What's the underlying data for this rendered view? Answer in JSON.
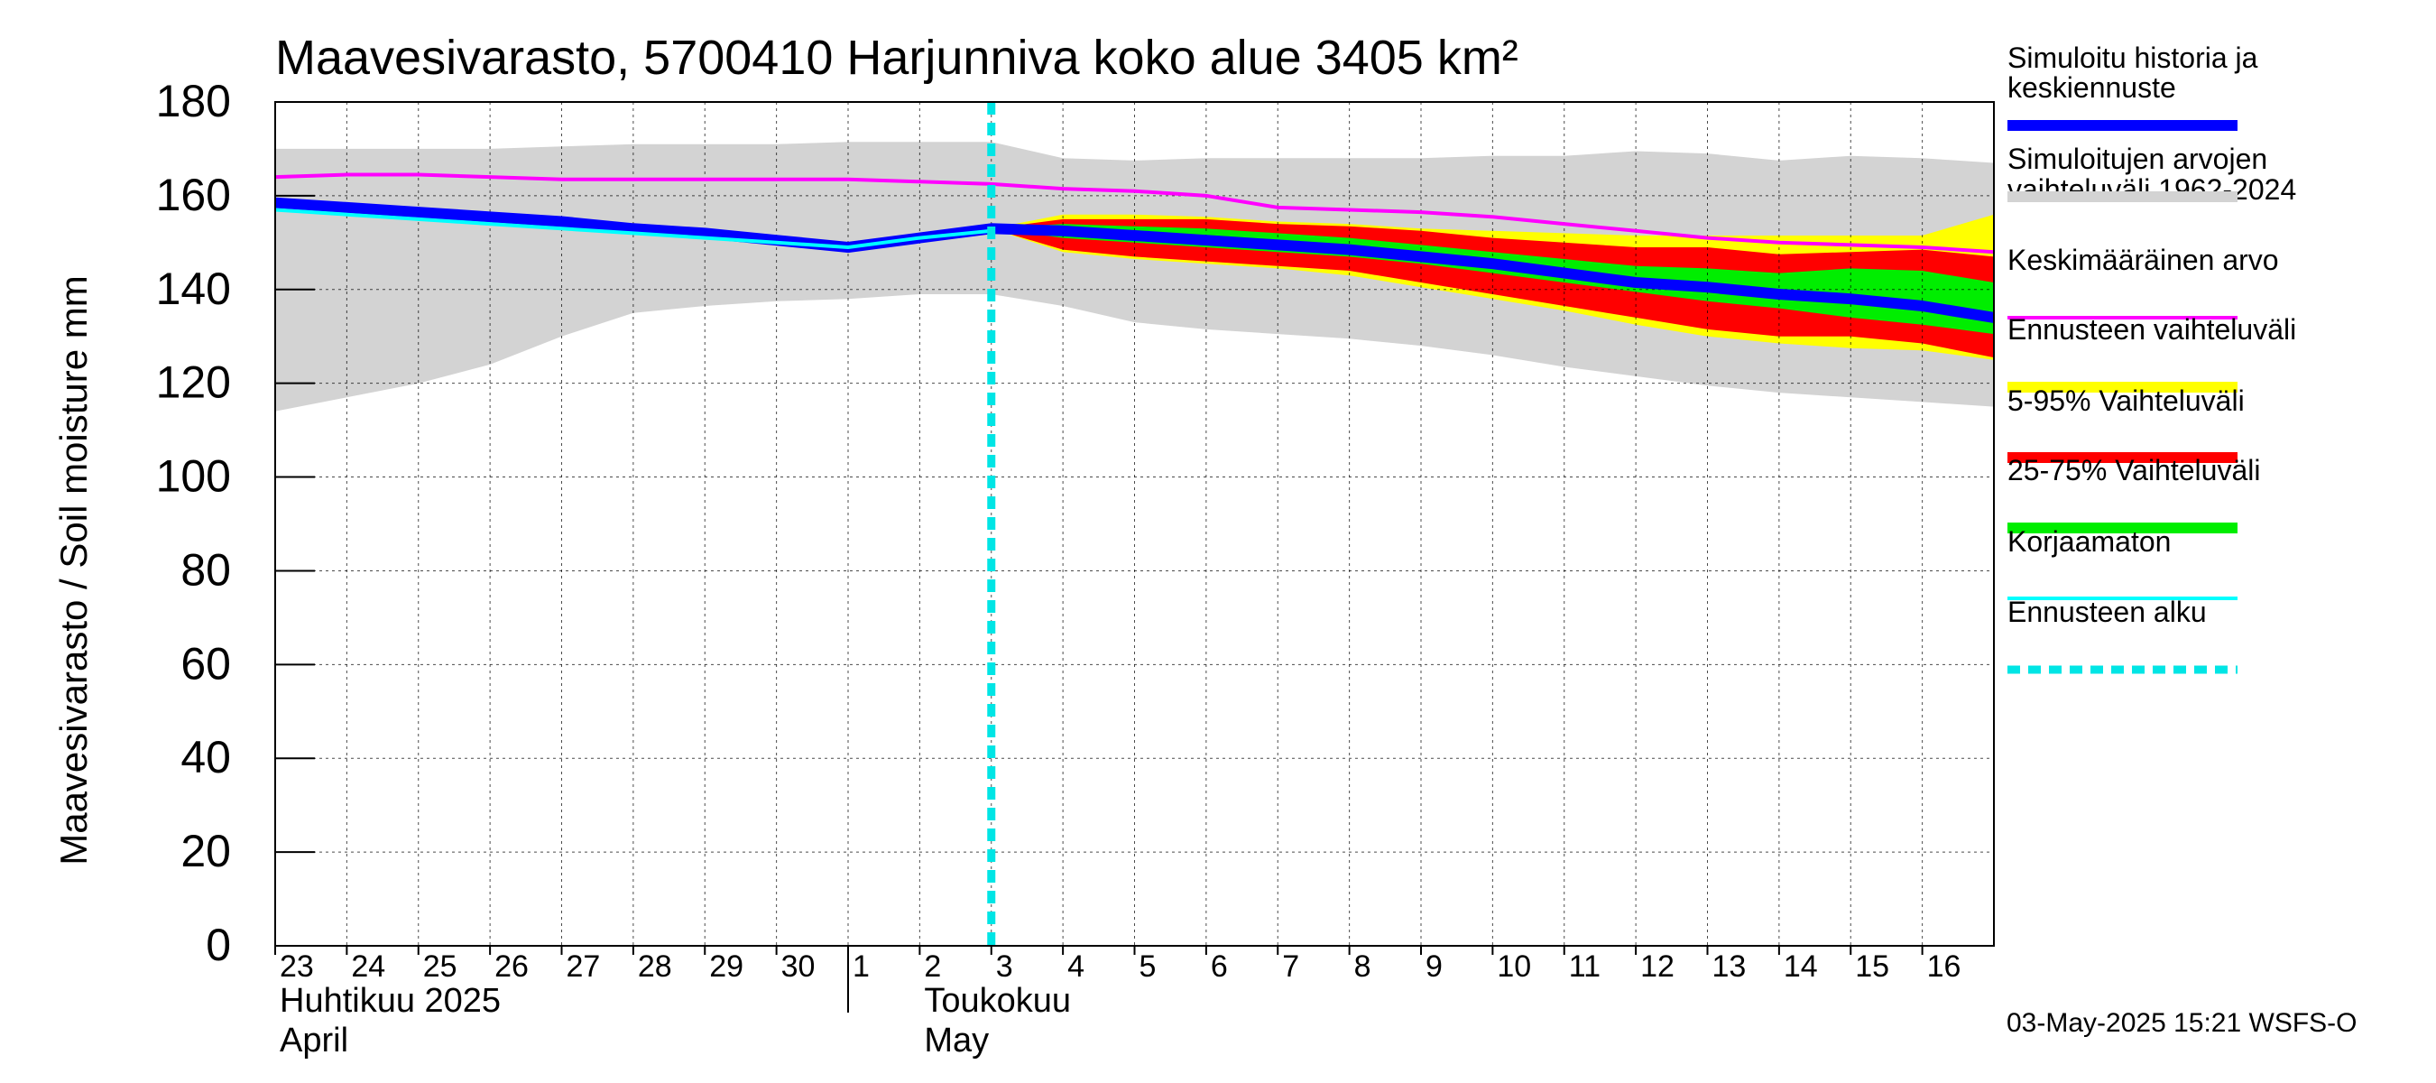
{
  "chart_data": {
    "type": "area",
    "title": "Maavesivarasto, 5700410 Harjunniva koko alue 3405 km²",
    "ylabel": "Maavesivarasto / Soil moisture   mm",
    "ylim": [
      0,
      180
    ],
    "yticks": [
      0,
      20,
      40,
      60,
      80,
      100,
      120,
      140,
      160,
      180
    ],
    "xlim": [
      0,
      24
    ],
    "day_labels": [
      "23",
      "24",
      "25",
      "26",
      "27",
      "28",
      "29",
      "30",
      "1",
      "2",
      "3",
      "4",
      "5",
      "6",
      "7",
      "8",
      "9",
      "10",
      "11",
      "12",
      "13",
      "14",
      "15",
      "16"
    ],
    "month_labels": [
      {
        "day_index": 0,
        "line1": "Huhtikuu  2025",
        "line2": "April"
      },
      {
        "day_index": 9,
        "line1": "Toukokuu",
        "line2": "May"
      }
    ],
    "month_boundary_x": 8,
    "forecast_start_x": 10.0,
    "footer": "03-May-2025 15:21 WSFS-O",
    "colors": {
      "sim": "#0000ff",
      "range_hist": "#d3d3d3",
      "mean": "#ff00ff",
      "fc_range": "#ffff00",
      "p5_95": "#ff0000",
      "p25_75": "#00ee00",
      "uncorrected": "#00ffff",
      "fc_start": "#00e5e5"
    },
    "legend": [
      {
        "key": "sim",
        "label": "Simuloitu historia ja keskiennuste",
        "style": "line"
      },
      {
        "key": "range_hist",
        "label": "Simuloitujen arvojen vaihteluväli 1962-2024",
        "style": "line"
      },
      {
        "key": "mean",
        "label": "Keskimääräinen arvo",
        "style": "thin"
      },
      {
        "key": "fc_range",
        "label": "Ennusteen vaihteluväli",
        "style": "line"
      },
      {
        "key": "p5_95",
        "label": "5-95% Vaihteluväli",
        "style": "line"
      },
      {
        "key": "p25_75",
        "label": "25-75% Vaihteluväli",
        "style": "line"
      },
      {
        "key": "uncorrected",
        "label": "Korjaamaton",
        "style": "thin"
      },
      {
        "key": "fc_start",
        "label": "Ennusteen alku",
        "style": "dashed"
      }
    ],
    "series": {
      "hist_range": {
        "name": "Simuloitujen arvojen vaihteluväli 1962-2024",
        "x": [
          0,
          1,
          2,
          3,
          4,
          5,
          6,
          7,
          8,
          9,
          10,
          11,
          12,
          13,
          14,
          15,
          16,
          17,
          18,
          19,
          20,
          21,
          22,
          23,
          24
        ],
        "upper": [
          170,
          170,
          170,
          170,
          170.5,
          171,
          171,
          171,
          171.5,
          171.5,
          171.5,
          168,
          167.5,
          168,
          168,
          168,
          168,
          168.5,
          168.5,
          169.5,
          169,
          167.5,
          168.5,
          168,
          167
        ],
        "lower": [
          114,
          117,
          120,
          124,
          130,
          135,
          136.5,
          137.5,
          138,
          139,
          139,
          136.5,
          133,
          131.5,
          130.5,
          129.5,
          128,
          126,
          123.5,
          121.5,
          119.5,
          118,
          117,
          116,
          115
        ]
      },
      "fc_range": {
        "name": "Ennusteen vaihteluväli",
        "x": [
          10,
          11,
          12,
          13,
          14,
          15,
          16,
          17,
          18,
          19,
          20,
          21,
          22,
          23,
          24
        ],
        "upper": [
          153,
          156,
          156,
          155.5,
          154.5,
          154,
          153,
          152.5,
          152,
          151.5,
          151.5,
          151.5,
          151.5,
          151.5,
          156
        ],
        "lower": [
          153,
          148,
          146.5,
          145.5,
          144.5,
          143,
          140.5,
          138,
          135.5,
          132.5,
          130,
          128.5,
          127.5,
          127,
          125
        ]
      },
      "p5_95": {
        "name": "5-95% Vaihteluväli",
        "x": [
          10,
          11,
          12,
          13,
          14,
          15,
          16,
          17,
          18,
          19,
          20,
          21,
          22,
          23,
          24
        ],
        "upper": [
          153,
          155,
          155,
          155,
          154,
          153.5,
          152.5,
          151,
          150,
          149,
          149,
          147.5,
          148,
          148.5,
          147
        ],
        "lower": [
          153,
          148.5,
          147,
          146,
          145,
          144,
          141.5,
          139,
          136.5,
          134,
          131.5,
          130,
          130,
          128.5,
          125.5
        ]
      },
      "p25_75": {
        "name": "25-75% Vaihteluväli",
        "x": [
          10,
          11,
          12,
          13,
          14,
          15,
          16,
          17,
          18,
          19,
          20,
          21,
          22,
          23,
          24
        ],
        "upper": [
          153,
          154,
          153.5,
          153,
          152,
          151,
          149.5,
          148,
          146.5,
          145,
          144.5,
          143.5,
          144.5,
          144,
          141.5
        ],
        "lower": [
          153,
          151,
          150,
          149,
          148,
          147,
          145.5,
          143.5,
          141.5,
          139.5,
          137.5,
          136,
          134,
          132.5,
          130.5
        ]
      },
      "sim": {
        "name": "Simuloitu historia ja keskiennuste",
        "x": [
          0,
          1,
          2,
          3,
          4,
          5,
          6,
          7,
          8,
          9,
          10,
          11,
          12,
          13,
          14,
          15,
          16,
          17,
          18,
          19,
          20,
          21,
          22,
          23,
          24
        ],
        "y": [
          158.5,
          157.5,
          156.5,
          155.5,
          154.5,
          153,
          152,
          150.5,
          149,
          151,
          153,
          152.5,
          151.5,
          150.5,
          149.5,
          148.5,
          147,
          145.5,
          143.5,
          141.5,
          140.5,
          139,
          138,
          136.5,
          134
        ]
      },
      "uncorrected": {
        "name": "Korjaamaton",
        "x": [
          0,
          1,
          2,
          3,
          4,
          5,
          6,
          7,
          8,
          9,
          10
        ],
        "y": [
          157,
          156,
          155,
          154,
          153,
          152,
          151,
          150,
          149,
          151,
          152.5
        ]
      },
      "mean": {
        "name": "Keskimääräinen arvo",
        "x": [
          0,
          1,
          2,
          3,
          4,
          5,
          6,
          7,
          8,
          9,
          10,
          11,
          12,
          13,
          14,
          15,
          16,
          17,
          18,
          19,
          20,
          21,
          22,
          23,
          24
        ],
        "y": [
          164,
          164.5,
          164.5,
          164,
          163.5,
          163.5,
          163.5,
          163.5,
          163.5,
          163,
          162.5,
          161.5,
          161,
          160,
          157.5,
          157,
          156.5,
          155.5,
          154,
          152.5,
          151,
          150,
          149.5,
          149,
          148
        ]
      }
    }
  }
}
